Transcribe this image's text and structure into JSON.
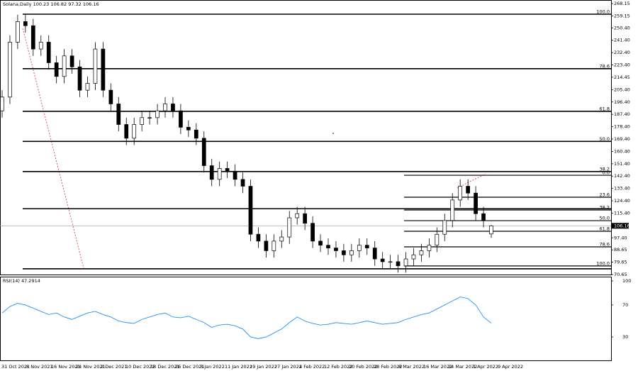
{
  "chart_data": {
    "type": "candlestick",
    "title": "Solana,Daily 100.23 106.82 97.32 106.16",
    "x_labels": [
      "31 Oct 2021",
      "8 Nov 2021",
      "16 Nov 2021",
      "24 Nov 2021",
      "2 Dec 2021",
      "10 Dec 2021",
      "18 Dec 2021",
      "26 Dec 2021",
      "3 Jan 2022",
      "11 Jan 2022",
      "19 Jan 2022",
      "27 Jan 2022",
      "4 Feb 2022",
      "12 Feb 2022",
      "20 Feb 2022",
      "28 Feb 2022",
      "8 Mar 2022",
      "16 Mar 2022",
      "24 Mar 2022",
      "1 Apr 2022",
      "9 Apr 2022"
    ],
    "open": [
      190,
      200,
      240,
      255,
      252,
      235,
      240,
      225,
      215,
      230,
      222,
      205,
      210,
      235,
      205,
      195,
      180,
      170,
      180,
      185,
      185,
      190,
      195,
      190,
      178,
      176,
      170,
      150,
      140,
      148,
      146,
      140,
      135,
      100,
      95,
      88,
      95,
      98,
      112,
      115,
      108,
      95,
      92,
      90,
      88,
      85,
      88,
      92,
      90,
      82,
      80,
      80,
      77,
      82,
      85,
      88,
      92,
      100,
      110,
      125,
      135,
      130,
      115,
      100.23
    ],
    "high": [
      205,
      245,
      260,
      260,
      257,
      245,
      245,
      230,
      235,
      235,
      227,
      215,
      240,
      240,
      210,
      200,
      185,
      185,
      190,
      190,
      195,
      200,
      200,
      195,
      183,
      181,
      175,
      155,
      153,
      153,
      151,
      145,
      140,
      105,
      100,
      100,
      103,
      117,
      120,
      120,
      113,
      100,
      97,
      95,
      93,
      93,
      97,
      97,
      95,
      87,
      85,
      85,
      87,
      90,
      93,
      97,
      105,
      115,
      130,
      140,
      140,
      135,
      120,
      106.82
    ],
    "low": [
      185,
      195,
      235,
      247,
      230,
      230,
      220,
      210,
      210,
      217,
      200,
      200,
      205,
      200,
      190,
      175,
      165,
      165,
      175,
      180,
      180,
      185,
      185,
      173,
      171,
      165,
      145,
      135,
      135,
      141,
      135,
      130,
      95,
      90,
      83,
      83,
      90,
      93,
      107,
      103,
      90,
      87,
      85,
      83,
      80,
      80,
      83,
      85,
      77,
      75,
      75,
      72,
      72,
      77,
      80,
      83,
      87,
      95,
      105,
      120,
      125,
      110,
      105,
      97.32
    ],
    "close": [
      200,
      240,
      255,
      252,
      235,
      240,
      225,
      215,
      230,
      222,
      205,
      210,
      235,
      205,
      195,
      180,
      170,
      180,
      185,
      185,
      190,
      195,
      190,
      178,
      176,
      170,
      150,
      140,
      148,
      146,
      140,
      135,
      100,
      95,
      88,
      95,
      98,
      112,
      115,
      108,
      95,
      92,
      90,
      88,
      85,
      88,
      92,
      90,
      82,
      80,
      80,
      77,
      82,
      85,
      88,
      92,
      100,
      110,
      125,
      135,
      130,
      115,
      110,
      106.16
    ],
    "up_color": "#ffffff",
    "down_color": "#000000",
    "ylim": [
      70.65,
      268.15
    ],
    "yticks": [
      268.15,
      259.15,
      {
        "value": 250.4,
        "label": "250.40"
      },
      {
        "value": 241.4,
        "label": "241.40"
      },
      {
        "value": 232.4,
        "label": "232.40"
      },
      {
        "value": 223.4,
        "label": "223.40"
      },
      214.45,
      {
        "value": 205.4,
        "label": "205.40"
      },
      {
        "value": 196.4,
        "label": "196.40"
      },
      {
        "value": 187.4,
        "label": "187.40"
      },
      {
        "value": 178.4,
        "label": "178.40"
      },
      {
        "value": 169.4,
        "label": "169.40"
      },
      {
        "value": 160.4,
        "label": "160.40"
      },
      {
        "value": 151.4,
        "label": "151.40"
      },
      {
        "value": 142.4,
        "label": "142.40"
      },
      {
        "value": 133.4,
        "label": "133.40"
      },
      {
        "value": 124.4,
        "label": "124.40"
      },
      {
        "value": 115.4,
        "label": "115.40"
      },
      {
        "value": 97.4,
        "label": "97.40"
      },
      88.65,
      79.65,
      70.65
    ],
    "last_price": 106.16,
    "grid": true,
    "fib_large": [
      {
        "label": "100.0",
        "price": 260.4
      },
      {
        "label": "78.6",
        "price": 220.7
      },
      {
        "label": "61.8",
        "price": 189.6
      },
      {
        "label": "50.0",
        "price": 167.7
      },
      {
        "label": "38.2",
        "price": 145.7
      },
      {
        "price": 118.6
      },
      {
        "price": 74.8
      }
    ],
    "fib_small": [
      {
        "label": "0.0",
        "price": 143.0
      },
      {
        "label": "23.6",
        "price": 127.0
      },
      {
        "label": "38.2",
        "price": 117.7
      },
      {
        "label": "50.0",
        "price": 109.9
      },
      {
        "label": "61.8",
        "price": 102.2
      },
      {
        "label": "78.6",
        "price": 90.8
      },
      {
        "label": "100.0",
        "price": 76.9
      }
    ],
    "rsi": {
      "title": "RSI(14) 47.2914",
      "color": "#1e90ff",
      "values": [
        60,
        68,
        72,
        70,
        66,
        62,
        58,
        60,
        55,
        52,
        56,
        60,
        62,
        58,
        55,
        50,
        48,
        47,
        52,
        55,
        58,
        60,
        55,
        54,
        56,
        52,
        48,
        42,
        45,
        46,
        44,
        40,
        30,
        28,
        30,
        35,
        40,
        48,
        55,
        50,
        47,
        45,
        46,
        48,
        47,
        46,
        48,
        50,
        48,
        46,
        47,
        48,
        52,
        55,
        58,
        60,
        65,
        70,
        75,
        80,
        78,
        70,
        55,
        47.29
      ],
      "ylim": [
        0,
        100
      ],
      "yticks": [
        100,
        70,
        30
      ]
    }
  }
}
